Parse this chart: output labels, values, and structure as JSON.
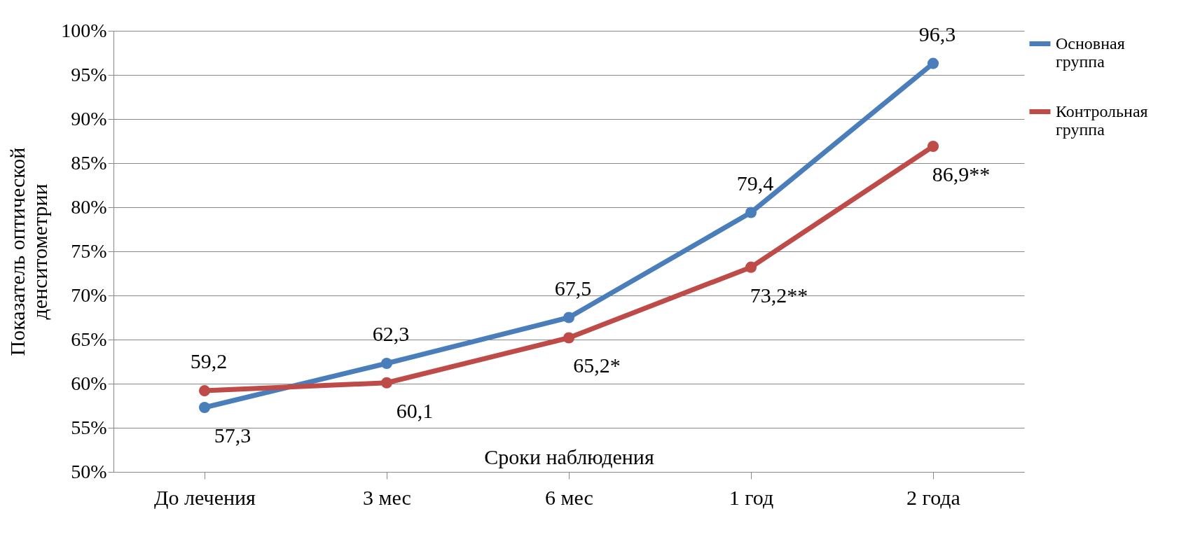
{
  "chart_data": {
    "type": "line",
    "categories": [
      "До лечения",
      "3 мес",
      "6 мес",
      "1 год",
      "2 года"
    ],
    "xlabel": "Сроки наблюдения",
    "ylabel": "Показатель оптической денситометрии",
    "ylim": [
      50,
      100
    ],
    "yticks": [
      {
        "value": 50,
        "label": "50%"
      },
      {
        "value": 55,
        "label": "55%"
      },
      {
        "value": 60,
        "label": "60%"
      },
      {
        "value": 65,
        "label": "65%"
      },
      {
        "value": 70,
        "label": "70%"
      },
      {
        "value": 75,
        "label": "75%"
      },
      {
        "value": 80,
        "label": "80%"
      },
      {
        "value": 85,
        "label": "85%"
      },
      {
        "value": 90,
        "label": "90%"
      },
      {
        "value": 95,
        "label": "95%"
      },
      {
        "value": 100,
        "label": "100%"
      }
    ],
    "series": [
      {
        "name": "Основная группа",
        "color": "#4a7ebb",
        "values": [
          57.3,
          62.3,
          67.5,
          79.4,
          96.3
        ],
        "value_labels": [
          "57,3",
          "62,3",
          "67,5",
          "79,4",
          "96,3"
        ]
      },
      {
        "name": "Контрольная группа",
        "color": "#be4b48",
        "values": [
          59.2,
          60.1,
          65.2,
          73.2,
          86.9
        ],
        "value_labels": [
          "59,2",
          "60,1",
          "65,2*",
          "73,2**",
          "86,9**"
        ]
      }
    ],
    "grid": "y",
    "legend": "right",
    "marker": "circle",
    "line_style": "solid"
  }
}
